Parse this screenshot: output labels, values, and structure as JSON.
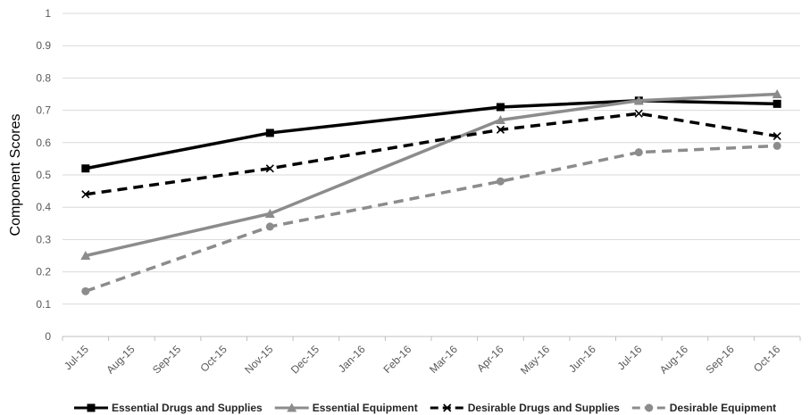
{
  "chart_data": {
    "type": "line",
    "title": "",
    "xlabel": "",
    "ylabel": "Component Scores",
    "ylim": [
      0,
      1
    ],
    "yticks": [
      "0",
      "0.1",
      "0.2",
      "0.3",
      "0.4",
      "0.5",
      "0.6",
      "0.7",
      "0.8",
      "0.9",
      "1"
    ],
    "categories": [
      "Jul-15",
      "Aug-15",
      "Sep-15",
      "Oct-15",
      "Nov-15",
      "Dec-15",
      "Jan-16",
      "Feb-16",
      "Mar-16",
      "Apr-16",
      "May-16",
      "Jun-16",
      "Jul-16",
      "Aug-16",
      "Sep-16",
      "Oct-16"
    ],
    "grid": true,
    "legend_position": "bottom",
    "series": [
      {
        "name": "Essential Drugs and Supplies",
        "color": "#000000",
        "dash": "solid",
        "marker": "square",
        "points": [
          [
            "Jul-15",
            0.52
          ],
          [
            "Nov-15",
            0.63
          ],
          [
            "Apr-16",
            0.71
          ],
          [
            "Jul-16",
            0.73
          ],
          [
            "Oct-16",
            0.72
          ]
        ]
      },
      {
        "name": "Essential Equipment",
        "color": "#8c8c8c",
        "dash": "solid",
        "marker": "triangle",
        "points": [
          [
            "Jul-15",
            0.25
          ],
          [
            "Nov-15",
            0.38
          ],
          [
            "Apr-16",
            0.67
          ],
          [
            "Jul-16",
            0.73
          ],
          [
            "Oct-16",
            0.75
          ]
        ]
      },
      {
        "name": "Desirable Drugs and Supplies",
        "color": "#000000",
        "dash": "dashed",
        "marker": "x",
        "points": [
          [
            "Jul-15",
            0.44
          ],
          [
            "Nov-15",
            0.52
          ],
          [
            "Apr-16",
            0.64
          ],
          [
            "Jul-16",
            0.69
          ],
          [
            "Oct-16",
            0.62
          ]
        ]
      },
      {
        "name": "Desirable Equipment",
        "color": "#8c8c8c",
        "dash": "dashed",
        "marker": "circle",
        "points": [
          [
            "Jul-15",
            0.14
          ],
          [
            "Nov-15",
            0.34
          ],
          [
            "Apr-16",
            0.48
          ],
          [
            "Jul-16",
            0.57
          ],
          [
            "Oct-16",
            0.59
          ]
        ]
      }
    ]
  }
}
